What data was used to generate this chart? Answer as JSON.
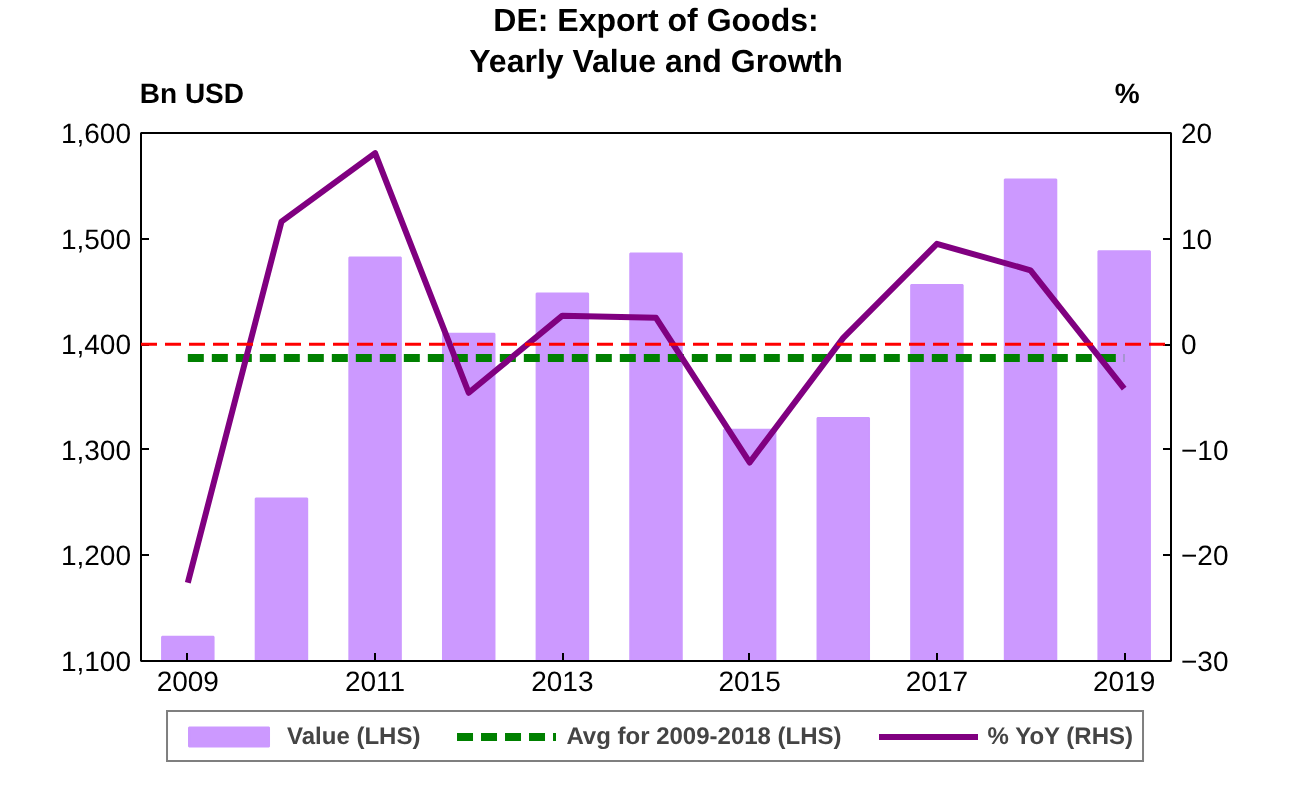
{
  "chart_data": {
    "type": "bar",
    "title": "DE: Export of Goods:\nYearly Value and Growth",
    "ylabel": "Bn USD",
    "y2label": "%",
    "x": [
      2009,
      2010,
      2011,
      2012,
      2013,
      2014,
      2015,
      2016,
      2017,
      2018,
      2019
    ],
    "xlim": [
      2008.5,
      2019.5
    ],
    "xticks": [
      2009,
      2011,
      2013,
      2015,
      2017,
      2019
    ],
    "ylim": [
      1100,
      1600
    ],
    "yticks": [
      {
        "value": 1100,
        "label": "1,100"
      },
      {
        "value": 1200,
        "label": "1,200"
      },
      {
        "value": 1300,
        "label": "1,300"
      },
      {
        "value": 1400,
        "label": "1,400"
      },
      {
        "value": 1500,
        "label": "1,500"
      },
      {
        "value": 1600,
        "label": "1,600"
      }
    ],
    "y2lim": [
      -30,
      20
    ],
    "y2ticks": [
      -30,
      -20,
      -10,
      0,
      10,
      20
    ],
    "series": [
      {
        "name": "Value (LHS)",
        "color": "#cc99ff",
        "values": [
          1123,
          1254,
          1482,
          1410,
          1448,
          1486,
          1319,
          1330,
          1456,
          1556,
          1488
        ]
      },
      {
        "name": "Avg for 2009-2018 (LHS)",
        "type": "line",
        "line_style": "dashed",
        "color": "#008000",
        "values": [
          1387,
          1387,
          1387,
          1387,
          1387,
          1387,
          1387,
          1387,
          1387,
          1387,
          1387
        ]
      },
      {
        "name": "% YoY (RHS)",
        "type": "line",
        "axis": "y2",
        "color": "#800080",
        "values": [
          -22.6,
          11.6,
          18.1,
          -4.6,
          2.7,
          2.5,
          -11.2,
          0.6,
          9.5,
          7.0,
          -4.2
        ]
      }
    ],
    "ref_lines": [
      {
        "axis": "y2",
        "value": 0,
        "color": "#ff0000",
        "line_style": "dashed"
      }
    ],
    "grid": false,
    "legend": "bottom",
    "marker": "none"
  }
}
